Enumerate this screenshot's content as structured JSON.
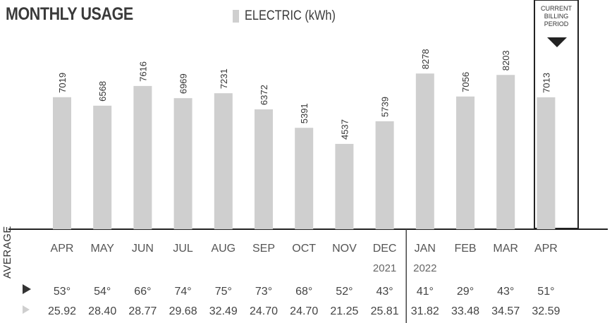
{
  "title": "MONTHLY USAGE",
  "legend": {
    "label": "ELECTRIC (kWh)"
  },
  "current_period": {
    "label": "CURRENT\nBILLING\nPERIOD"
  },
  "average_label": "AVERAGE",
  "colors": {
    "bar": "#cfcfcf",
    "text": "#3a3a3a",
    "rule": "#222222"
  },
  "chart_data": {
    "type": "bar",
    "title": "MONTHLY USAGE",
    "xlabel": "",
    "ylabel": "",
    "categories": [
      "APR",
      "MAY",
      "JUN",
      "JUL",
      "AUG",
      "SEP",
      "OCT",
      "NOV",
      "DEC",
      "JAN",
      "FEB",
      "MAR",
      "APR"
    ],
    "series": [
      {
        "name": "ELECTRIC (kWh)",
        "values": [
          7019,
          6568,
          7616,
          6969,
          7231,
          6372,
          5391,
          4537,
          5739,
          8278,
          7056,
          8203,
          7013
        ]
      }
    ],
    "ylim": [
      0,
      10500
    ],
    "grid": false,
    "legend": "top",
    "years": [
      "",
      "",
      "",
      "",
      "",
      "",
      "",
      "",
      "2021",
      "2022",
      "",
      "",
      ""
    ],
    "avg_temperature": [
      "53°",
      "54°",
      "66°",
      "74°",
      "75°",
      "73°",
      "68°",
      "52°",
      "43°",
      "41°",
      "29°",
      "43°",
      "51°"
    ],
    "avg_cost": [
      "25.92",
      "28.40",
      "28.77",
      "29.68",
      "32.49",
      "24.70",
      "24.70",
      "21.25",
      "25.81",
      "31.82",
      "33.48",
      "34.57",
      "32.59"
    ]
  }
}
